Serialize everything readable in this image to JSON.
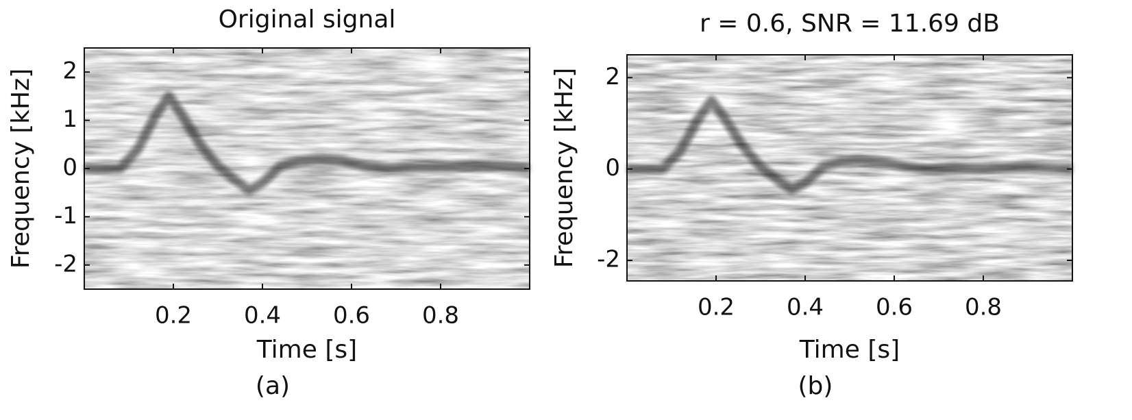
{
  "chart_data": [
    {
      "type": "spectrogram",
      "title": "Original signal",
      "xlabel": "Time [s]",
      "ylabel": "Frequency [kHz]",
      "caption": "(a)",
      "xlim": [
        0,
        1
      ],
      "ylim": [
        -2.5,
        2.5
      ],
      "xticks": [
        0.2,
        0.4,
        0.6,
        0.8
      ],
      "yticks": [
        -2,
        -1,
        0,
        1,
        2
      ],
      "color": "#1a1a1a",
      "x": [
        0,
        0.08,
        0.12,
        0.16,
        0.19,
        0.22,
        0.26,
        0.3,
        0.34,
        0.37,
        0.4,
        0.44,
        0.48,
        0.52,
        0.58,
        0.63,
        0.68,
        0.8,
        0.9,
        1
      ],
      "values": [
        0,
        0,
        0.4,
        1.1,
        1.5,
        1.1,
        0.5,
        0.05,
        -0.25,
        -0.45,
        -0.3,
        0.05,
        0.15,
        0.18,
        0.15,
        0.05,
        0,
        0.02,
        0.05,
        0
      ]
    },
    {
      "type": "spectrogram",
      "title": "r = 0.6, SNR = 11.69 dB",
      "xlabel": "Time [s]",
      "ylabel": "Frequency [kHz]",
      "caption": "(b)",
      "xlim": [
        0,
        1
      ],
      "ylim": [
        -2.45,
        2.5
      ],
      "xticks": [
        0.2,
        0.4,
        0.6,
        0.8
      ],
      "yticks": [
        -2,
        0,
        2
      ],
      "color": "#1a1a1a",
      "x": [
        0,
        0.08,
        0.12,
        0.16,
        0.19,
        0.22,
        0.26,
        0.3,
        0.34,
        0.37,
        0.4,
        0.44,
        0.48,
        0.52,
        0.58,
        0.63,
        0.68,
        0.8,
        0.9,
        1
      ],
      "values": [
        0,
        0,
        0.4,
        1.1,
        1.5,
        1.1,
        0.5,
        0.05,
        -0.25,
        -0.45,
        -0.3,
        0.05,
        0.15,
        0.18,
        0.15,
        0.05,
        0,
        0.02,
        0.05,
        0
      ]
    }
  ]
}
